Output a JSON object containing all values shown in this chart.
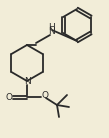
{
  "bg_color": "#f2edd8",
  "bond_color": "#2a2a2a",
  "lw": 1.3,
  "figsize": [
    1.09,
    1.38
  ],
  "dpi": 100,
  "xlim": [
    0,
    109
  ],
  "ylim": [
    0,
    138
  ]
}
